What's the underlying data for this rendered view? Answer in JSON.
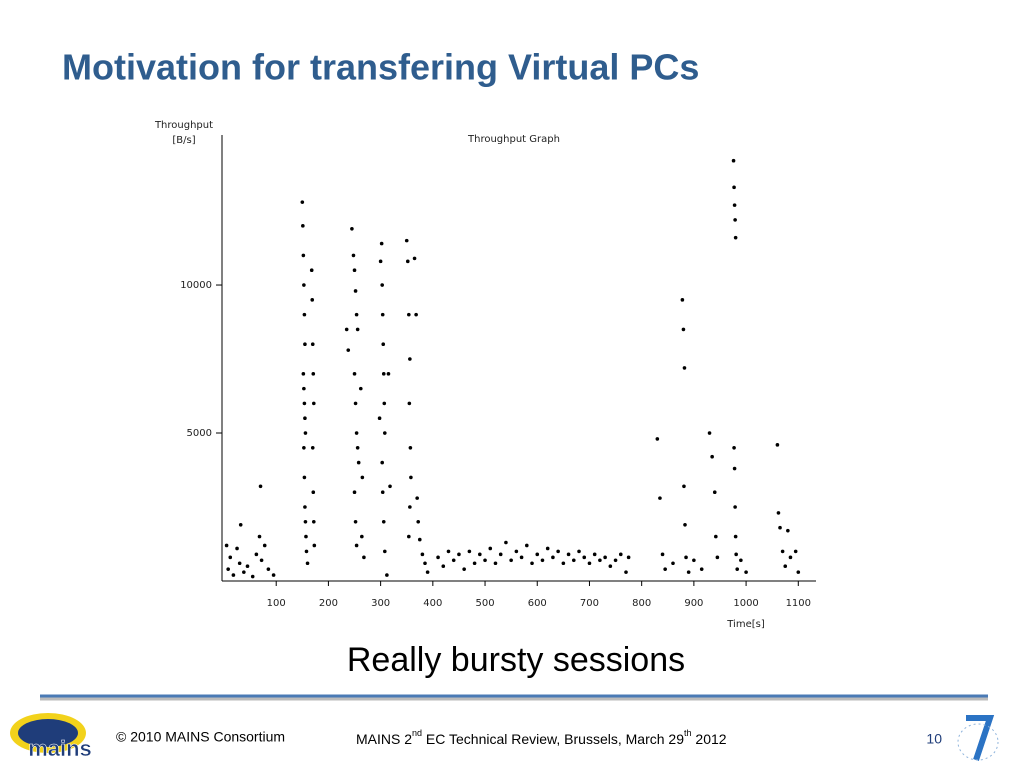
{
  "slide": {
    "title": "Motivation for transfering Virtual PCs",
    "caption": "Really bursty sessions",
    "footer_left": "© 2010 MAINS Consortium",
    "footer_center": [
      "MAINS 2",
      "nd",
      " EC Technical Review, Brussels, March 29",
      "th",
      " 2012"
    ],
    "page": "10",
    "logo": "mains"
  },
  "chart_data": {
    "type": "scatter",
    "title": "Throughput Graph",
    "y_label": [
      "Throughput",
      "[B/s]"
    ],
    "x_label": "Time[s]",
    "color": "#000000",
    "xlim": [
      0,
      1132
    ],
    "ylim": [
      0,
      14900
    ],
    "xticks": [
      100,
      200,
      300,
      400,
      500,
      600,
      700,
      800,
      900,
      1000,
      1100
    ],
    "yticks": [
      5000,
      10000
    ],
    "x": [
      5,
      8,
      12,
      18,
      25,
      30,
      32,
      38,
      45,
      55,
      62,
      68,
      70,
      72,
      78,
      85,
      95,
      150,
      151,
      152,
      153,
      154,
      155,
      152,
      153,
      154,
      155,
      156,
      153,
      154,
      155,
      156,
      157,
      158,
      160,
      168,
      169,
      170,
      171,
      172,
      170,
      171,
      172,
      173,
      235,
      238,
      245,
      248,
      250,
      252,
      254,
      256,
      250,
      252,
      254,
      256,
      258,
      250,
      252,
      254,
      262,
      265,
      264,
      268,
      298,
      300,
      302,
      303,
      304,
      305,
      306,
      307,
      308,
      303,
      304,
      306,
      308,
      315,
      318,
      312,
      350,
      352,
      354,
      356,
      355,
      357,
      358,
      356,
      354,
      365,
      368,
      370,
      372,
      375,
      380,
      385,
      390,
      410,
      420,
      430,
      440,
      450,
      460,
      470,
      480,
      490,
      500,
      510,
      520,
      530,
      540,
      550,
      560,
      570,
      580,
      590,
      600,
      610,
      620,
      630,
      640,
      650,
      660,
      670,
      680,
      690,
      700,
      710,
      720,
      730,
      740,
      750,
      760,
      770,
      775,
      830,
      835,
      840,
      845,
      860,
      878,
      880,
      882,
      881,
      883,
      885,
      890,
      900,
      915,
      930,
      935,
      940,
      942,
      945,
      976,
      977,
      978,
      979,
      980,
      977,
      978,
      979,
      980,
      981,
      983,
      990,
      1000,
      1060,
      1062,
      1065,
      1070,
      1075,
      1080,
      1085,
      1095,
      1100
    ],
    "values": [
      1200,
      400,
      800,
      200,
      1100,
      600,
      1900,
      300,
      500,
      150,
      900,
      1500,
      3200,
      700,
      1200,
      400,
      200,
      12800,
      12000,
      11000,
      10000,
      9000,
      8000,
      7000,
      6500,
      6000,
      5500,
      5000,
      4500,
      3500,
      2500,
      2000,
      1500,
      1000,
      600,
      10500,
      9500,
      8000,
      7000,
      6000,
      4500,
      3000,
      2000,
      1200,
      8500,
      7800,
      11900,
      11000,
      10500,
      9800,
      9000,
      8500,
      7000,
      6000,
      5000,
      4500,
      4000,
      3000,
      2000,
      1200,
      6500,
      3500,
      1500,
      800,
      5500,
      10800,
      11400,
      10000,
      9000,
      8000,
      7000,
      6000,
      5000,
      4000,
      3000,
      2000,
      1000,
      7000,
      3200,
      200,
      11500,
      10800,
      9000,
      7500,
      6000,
      4500,
      3500,
      2500,
      1500,
      10900,
      9000,
      2800,
      2000,
      1400,
      900,
      600,
      300,
      800,
      500,
      1000,
      700,
      900,
      400,
      1000,
      600,
      900,
      700,
      1100,
      600,
      900,
      1300,
      700,
      1000,
      800,
      1200,
      600,
      900,
      700,
      1100,
      800,
      1000,
      600,
      900,
      700,
      1000,
      800,
      600,
      900,
      700,
      800,
      500,
      700,
      900,
      300,
      800,
      4800,
      2800,
      900,
      400,
      600,
      9500,
      8500,
      7200,
      3200,
      1900,
      800,
      300,
      700,
      400,
      5000,
      4200,
      3000,
      1500,
      800,
      14200,
      13300,
      12700,
      12200,
      11600,
      4500,
      3800,
      2500,
      1500,
      900,
      400,
      700,
      300,
      4600,
      2300,
      1800,
      1000,
      500,
      1700,
      800,
      1000,
      300
    ]
  }
}
